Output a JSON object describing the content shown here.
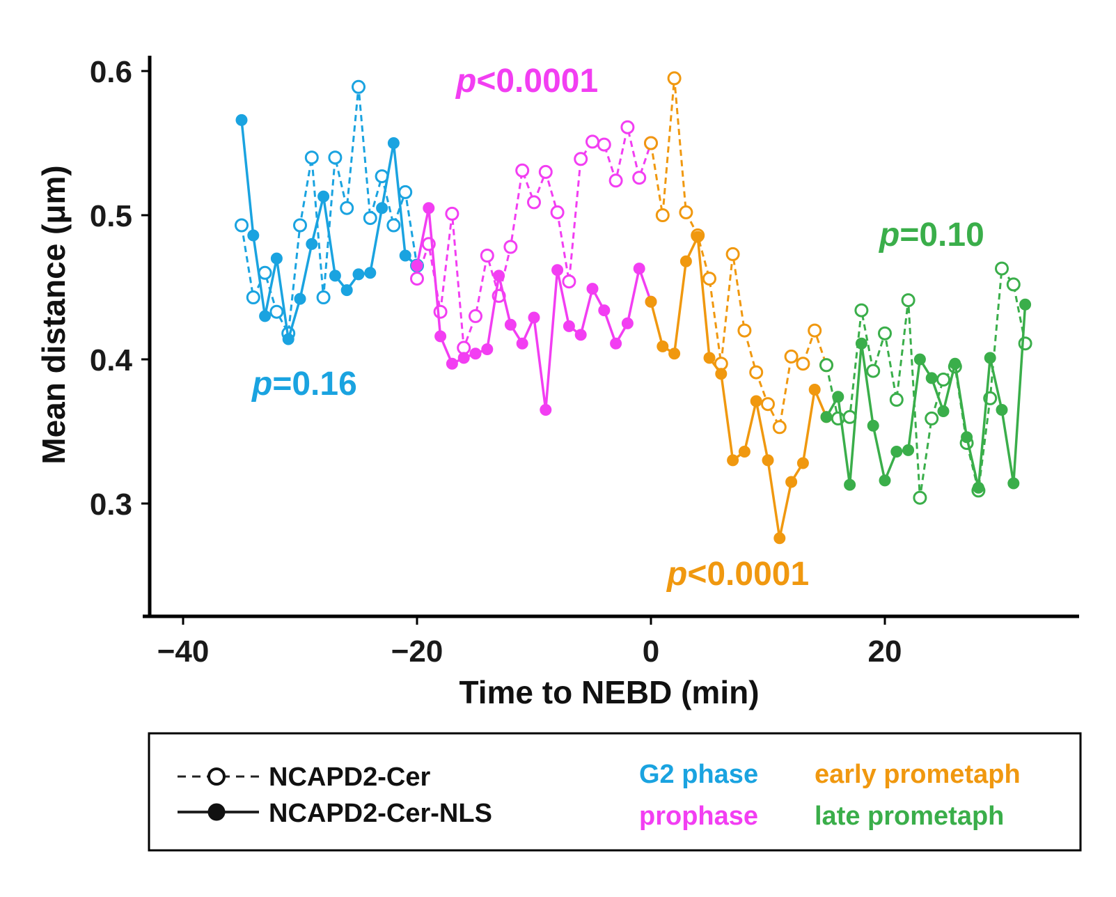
{
  "chart_data": {
    "type": "line",
    "xlabel": "Time to NEBD (min)",
    "ylabel": "Mean distance (μm)",
    "xlim": [
      -42,
      36
    ],
    "ylim": [
      0.22,
      0.62
    ],
    "xticks": [
      -40,
      -20,
      0,
      20
    ],
    "xtick_labels": [
      "−40",
      "−20",
      "0",
      "20"
    ],
    "yticks": [
      0.3,
      0.4,
      0.5,
      0.6
    ],
    "ytick_labels": [
      "0.3",
      "0.4",
      "0.5",
      "0.6"
    ],
    "phases": [
      {
        "name": "G2 phase",
        "color": "#1aa3e0",
        "p_label": "p",
        "p_value": "=0.16"
      },
      {
        "name": "prophase",
        "color": "#f23ef2",
        "p_label": "p",
        "p_value": "<0.0001"
      },
      {
        "name": "early prometaph",
        "color": "#f0980f",
        "p_label": "p",
        "p_value": "<0.0001"
      },
      {
        "name": "late prometaph",
        "color": "#3aae4a",
        "p_label": "p",
        "p_value": "=0.10"
      }
    ],
    "series": [
      {
        "name": "NCAPD2-Cer",
        "marker": "open",
        "line": "dashed",
        "segments": [
          {
            "phase": 0,
            "x": [
              -35,
              -34,
              -33,
              -32,
              -31,
              -30,
              -29,
              -28,
              -27,
              -26,
              -25,
              -24,
              -23,
              -22,
              -21,
              -20
            ],
            "y": [
              0.493,
              0.443,
              0.46,
              0.433,
              0.418,
              0.493,
              0.54,
              0.443,
              0.54,
              0.505,
              0.589,
              0.498,
              0.527,
              0.493,
              0.516,
              0.465
            ]
          },
          {
            "phase": 1,
            "x": [
              -20,
              -19,
              -18,
              -17,
              -16,
              -15,
              -14,
              -13,
              -12,
              -11,
              -10,
              -9,
              -8,
              -7,
              -6,
              -5,
              -4,
              -3,
              -2,
              -1,
              0
            ],
            "y": [
              0.456,
              0.48,
              0.433,
              0.501,
              0.408,
              0.43,
              0.472,
              0.444,
              0.478,
              0.531,
              0.509,
              0.53,
              0.502,
              0.454,
              0.539,
              0.551,
              0.549,
              0.524,
              0.561,
              0.526,
              0.55
            ]
          },
          {
            "phase": 2,
            "x": [
              0,
              1,
              2,
              3,
              4,
              5,
              6,
              7,
              8,
              9,
              10,
              11,
              12,
              13,
              14,
              15
            ],
            "y": [
              0.55,
              0.5,
              0.595,
              0.502,
              0.486,
              0.456,
              0.397,
              0.473,
              0.42,
              0.391,
              0.369,
              0.353,
              0.402,
              0.397,
              0.42,
              0.396
            ]
          },
          {
            "phase": 3,
            "x": [
              15,
              16,
              17,
              18,
              19,
              20,
              21,
              22,
              23,
              24,
              25,
              26,
              27,
              28,
              29,
              30,
              31,
              32
            ],
            "y": [
              0.396,
              0.359,
              0.36,
              0.434,
              0.392,
              0.418,
              0.372,
              0.441,
              0.304,
              0.359,
              0.386,
              0.395,
              0.342,
              0.309,
              0.373,
              0.463,
              0.452,
              0.411
            ]
          }
        ]
      },
      {
        "name": "NCAPD2-Cer-NLS",
        "marker": "filled",
        "line": "solid",
        "segments": [
          {
            "phase": 0,
            "x": [
              -35,
              -34,
              -33,
              -32,
              -31,
              -30,
              -29,
              -28,
              -27,
              -26,
              -25,
              -24,
              -23,
              -22,
              -21,
              -20
            ],
            "y": [
              0.566,
              0.486,
              0.43,
              0.47,
              0.414,
              0.442,
              0.48,
              0.513,
              0.458,
              0.448,
              0.459,
              0.46,
              0.505,
              0.55,
              0.472,
              0.465
            ]
          },
          {
            "phase": 1,
            "x": [
              -20,
              -19,
              -18,
              -17,
              -16,
              -15,
              -14,
              -13,
              -12,
              -11,
              -10,
              -9,
              -8,
              -7,
              -6,
              -5,
              -4,
              -3,
              -2,
              -1,
              0
            ],
            "y": [
              0.465,
              0.505,
              0.416,
              0.397,
              0.401,
              0.404,
              0.407,
              0.458,
              0.424,
              0.411,
              0.429,
              0.365,
              0.462,
              0.423,
              0.417,
              0.449,
              0.434,
              0.411,
              0.425,
              0.463,
              0.44
            ]
          },
          {
            "phase": 2,
            "x": [
              0,
              1,
              2,
              3,
              4,
              5,
              6,
              7,
              8,
              9,
              10,
              11,
              12,
              13,
              14,
              15
            ],
            "y": [
              0.44,
              0.409,
              0.404,
              0.468,
              0.485,
              0.401,
              0.39,
              0.33,
              0.336,
              0.371,
              0.33,
              0.276,
              0.315,
              0.328,
              0.379,
              0.36
            ]
          },
          {
            "phase": 3,
            "x": [
              15,
              16,
              17,
              18,
              19,
              20,
              21,
              22,
              23,
              24,
              25,
              26,
              27,
              28,
              29,
              30,
              31,
              32
            ],
            "y": [
              0.36,
              0.374,
              0.313,
              0.411,
              0.354,
              0.316,
              0.336,
              0.337,
              0.4,
              0.387,
              0.364,
              0.397,
              0.346,
              0.311,
              0.401,
              0.365,
              0.314,
              0.438
            ]
          }
        ]
      }
    ],
    "legend": {
      "position": "bottom",
      "series_labels": [
        "NCAPD2-Cer",
        "NCAPD2-Cer-NLS"
      ],
      "phase_labels": [
        "G2 phase",
        "prophase",
        "early prometaph",
        "late prometaph"
      ]
    }
  }
}
